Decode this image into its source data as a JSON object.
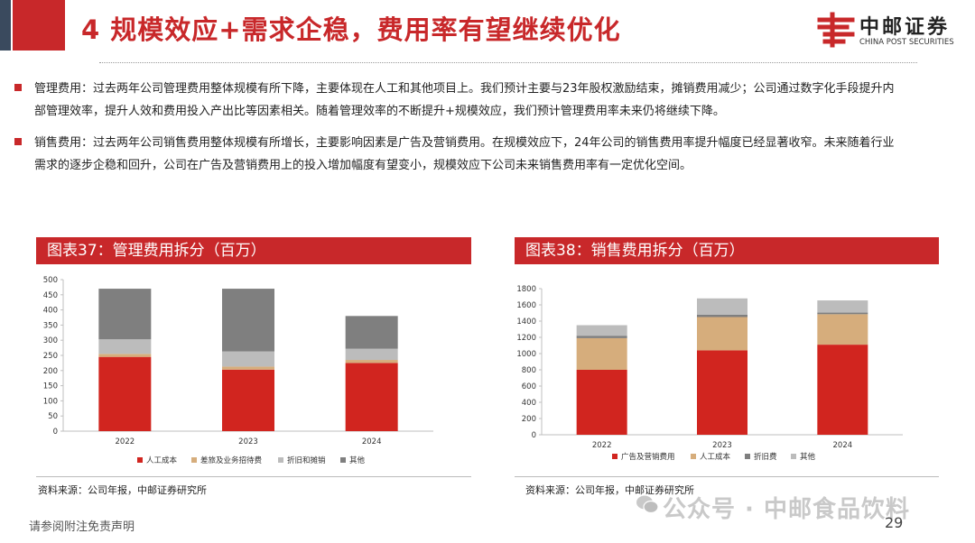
{
  "header": {
    "title": "4 规模效应+需求企稳，费用率有望继续优化",
    "logo_name": "中邮证券",
    "logo_en": "CHINA POST SECURITIES"
  },
  "paragraphs": [
    {
      "line1": "管理费用：过去两年公司管理费用整体规模有所下降，主要体现在人工和其他项目上。我们预计主要与23年股权激励结束，摊销费用减少；公司通过数字化手段提升内",
      "line2": "部管理效率，提升人效和费用投入产出比等因素相关。随着管理效率的不断提升+规模效应，我们预计管理费用率未来仍将继续下降。"
    },
    {
      "line1": "销售费用：过去两年公司销售费用整体规模有所增长，主要影响因素是广告及营销费用。在规模效应下，24年公司的销售费用率提升幅度已经显著收窄。未来随着行业",
      "line2": "需求的逐步企稳和回升，公司在广告及营销费用上的投入增加幅度有望变小，规模效应下公司未来销售费用率有一定优化空间。"
    }
  ],
  "chart_left_title": "图表37：管理费用拆分（百万）",
  "chart_right_title": "图表38：销售费用拆分（百万）",
  "source_left": "资料来源：公司年报，中邮证券研究所",
  "source_right": "资料来源：公司年报，中邮证券研究所",
  "disclaimer": "请参阅附注免责声明",
  "watermark": "公众号 · 中邮食品饮料",
  "page_number": "29",
  "colors": {
    "accent": "#c8282a",
    "red": "#d1251f",
    "tan": "#d6ad7c",
    "gray_light": "#bcbcbc",
    "gray_dark": "#7f7f7f",
    "navy": "#3a4a5e"
  },
  "chart_data": [
    {
      "type": "bar",
      "stacked": true,
      "title": "图表37：管理费用拆分（百万）",
      "categories": [
        "2022",
        "2023",
        "2024"
      ],
      "ylim": [
        0,
        500
      ],
      "yticks": [
        0,
        50,
        100,
        150,
        200,
        250,
        300,
        350,
        400,
        450,
        500
      ],
      "series": [
        {
          "name": "人工成本",
          "color": "#d1251f",
          "values": [
            245,
            203,
            225
          ]
        },
        {
          "name": "差旅及业务招待费",
          "color": "#d6ad7c",
          "values": [
            10,
            10,
            10
          ]
        },
        {
          "name": "折旧和摊销",
          "color": "#bcbcbc",
          "values": [
            48,
            50,
            37
          ]
        },
        {
          "name": "其他",
          "color": "#7f7f7f",
          "values": [
            167,
            207,
            108
          ]
        }
      ],
      "legend": "bottom"
    },
    {
      "type": "bar",
      "stacked": true,
      "title": "图表38：销售费用拆分（百万）",
      "categories": [
        "2022",
        "2023",
        "2024"
      ],
      "ylim": [
        0,
        1800
      ],
      "yticks": [
        0,
        200,
        400,
        600,
        800,
        1000,
        1200,
        1400,
        1600,
        1800
      ],
      "series": [
        {
          "name": "广告及营销费用",
          "color": "#d1251f",
          "values": [
            800,
            1040,
            1110
          ]
        },
        {
          "name": "人工成本",
          "color": "#d6ad7c",
          "values": [
            390,
            410,
            375
          ]
        },
        {
          "name": "折旧费",
          "color": "#7f7f7f",
          "values": [
            30,
            30,
            20
          ]
        },
        {
          "name": "其他",
          "color": "#bcbcbc",
          "values": [
            130,
            200,
            150
          ]
        }
      ],
      "legend": "bottom"
    }
  ]
}
